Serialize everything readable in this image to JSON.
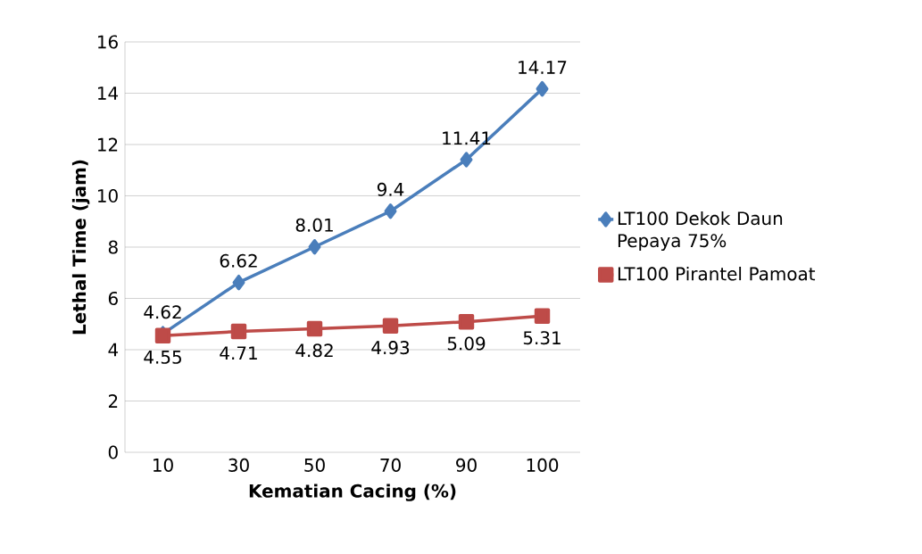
{
  "chart_data": {
    "type": "line",
    "xlabel": "Kematian Cacing (%)",
    "ylabel": "Lethal Time (jam)",
    "categories": [
      "10",
      "30",
      "50",
      "70",
      "90",
      "100"
    ],
    "series": [
      {
        "name": "LT100 Dekok Daun Pepaya 75%",
        "color": "#4a7ebb",
        "marker": "diamond",
        "values": [
          4.62,
          6.62,
          8.01,
          9.4,
          11.41,
          14.17
        ]
      },
      {
        "name": "LT100 Pirantel Pamoat",
        "color": "#be4b48",
        "marker": "square",
        "values": [
          4.55,
          4.71,
          4.82,
          4.93,
          5.09,
          5.31
        ]
      }
    ],
    "ylim": [
      0,
      16
    ],
    "yticks": [
      0,
      2,
      4,
      6,
      8,
      10,
      12,
      14,
      16
    ],
    "grid": "y",
    "legend": "right",
    "data_labels": true,
    "line_style": "solid"
  }
}
